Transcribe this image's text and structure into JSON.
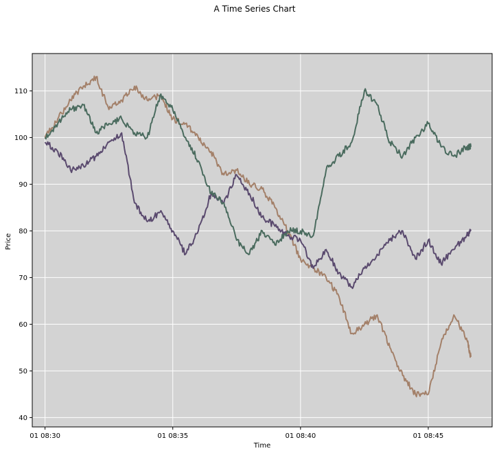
{
  "chart_data": {
    "type": "line",
    "title": "A Time Series Chart",
    "xlabel": "Time",
    "ylabel": "Price",
    "ylim": [
      38,
      118
    ],
    "xlim": [
      "01 08:29:30",
      "01 08:47:30"
    ],
    "x_ticks": [
      "01 08:30",
      "01 08:35",
      "01 08:40",
      "01 08:45"
    ],
    "y_ticks": [
      40,
      50,
      60,
      70,
      80,
      90,
      100,
      110
    ],
    "grid": true,
    "legend": "none",
    "colors": {
      "plot_background": "#d3d3d3",
      "grid": "#ffffff"
    },
    "x": [
      "08:30",
      "08:30:30",
      "08:31",
      "08:31:30",
      "08:32",
      "08:32:30",
      "08:33",
      "08:33:30",
      "08:34",
      "08:34:30",
      "08:35",
      "08:35:30",
      "08:36",
      "08:36:30",
      "08:37",
      "08:37:30",
      "08:38",
      "08:38:30",
      "08:39",
      "08:39:30",
      "08:40",
      "08:40:30",
      "08:41",
      "08:41:30",
      "08:42",
      "08:42:30",
      "08:43",
      "08:43:30",
      "08:44",
      "08:44:30",
      "08:45",
      "08:45:30",
      "08:46",
      "08:46:30",
      "08:46:40"
    ],
    "series": [
      {
        "color": "#a38069",
        "values": [
          100,
          104,
          108,
          111,
          113,
          106,
          108,
          111,
          108,
          109,
          104,
          103,
          100,
          97,
          92,
          93,
          90,
          89,
          85,
          80,
          74,
          72,
          70,
          66,
          58,
          60,
          62,
          55,
          49,
          45,
          45,
          56,
          62,
          57,
          53
        ]
      },
      {
        "color": "#5a4a6e",
        "values": [
          99,
          97,
          93,
          94,
          96,
          99,
          101,
          86,
          82,
          84,
          80,
          75,
          80,
          88,
          86,
          92,
          88,
          83,
          81,
          79,
          78,
          72,
          76,
          71,
          68,
          72,
          75,
          78,
          80,
          74,
          78,
          73,
          76,
          79,
          80
        ]
      },
      {
        "color": "#4a6b5e",
        "values": [
          100,
          103,
          106,
          107,
          101,
          103,
          104,
          101,
          100,
          109,
          106,
          100,
          95,
          88,
          86,
          78,
          75,
          80,
          77,
          80,
          80,
          79,
          93,
          96,
          99,
          110,
          107,
          99,
          96,
          100,
          103,
          98,
          96,
          98,
          98
        ]
      }
    ]
  }
}
